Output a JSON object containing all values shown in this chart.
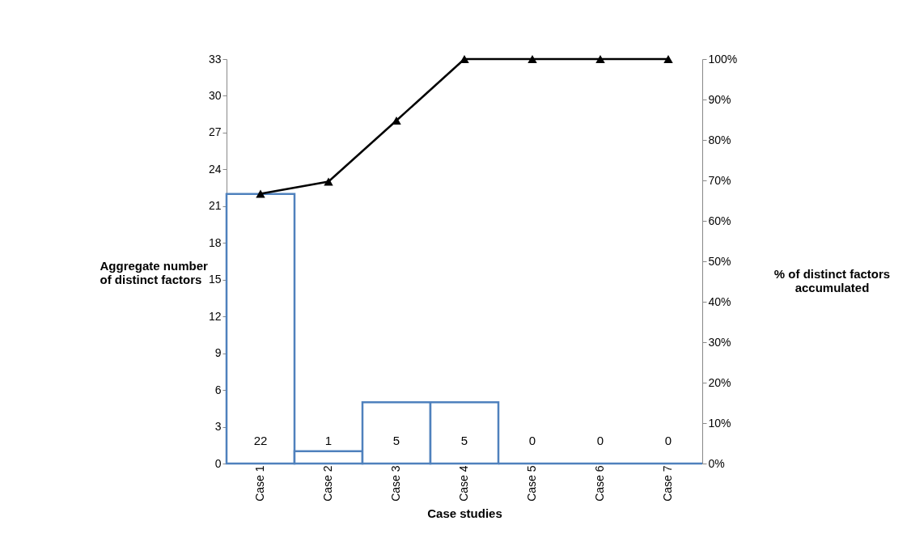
{
  "chart_data": {
    "type": "bar",
    "xlabel": "Case studies",
    "ylabel": "Aggregate number\nof distinct factors",
    "y2label": "% of distinct factors\naccumulated",
    "categories": [
      "Case 1",
      "Case 2",
      "Case 3",
      "Case 4",
      "Case 5",
      "Case 6",
      "Case 7"
    ],
    "series": [
      {
        "color": "#4f81bd",
        "values": [
          22,
          1,
          5,
          5,
          0,
          0,
          0
        ],
        "value_labels": [
          "22",
          "1",
          "5",
          "5",
          "0",
          "0",
          "0"
        ]
      },
      {
        "type": "line",
        "axis": "y2",
        "color": "#000000",
        "values": [
          66.7,
          69.7,
          84.8,
          100,
          100,
          100,
          100
        ]
      }
    ],
    "ylim": [
      0,
      33
    ],
    "yticks": [
      0,
      3,
      6,
      9,
      12,
      15,
      18,
      21,
      24,
      27,
      30,
      33
    ],
    "y2lim": [
      0,
      100
    ],
    "y2ticks": [
      {
        "value": 0,
        "label": "0%"
      },
      {
        "value": 10,
        "label": "10%"
      },
      {
        "value": 20,
        "label": "20%"
      },
      {
        "value": 30,
        "label": "30%"
      },
      {
        "value": 40,
        "label": "40%"
      },
      {
        "value": 50,
        "label": "50%"
      },
      {
        "value": 60,
        "label": "60%"
      },
      {
        "value": 70,
        "label": "70%"
      },
      {
        "value": 80,
        "label": "80%"
      },
      {
        "value": 90,
        "label": "90%"
      },
      {
        "value": 100,
        "label": "100%"
      }
    ],
    "marker": "triangle",
    "line_style": "solid"
  }
}
